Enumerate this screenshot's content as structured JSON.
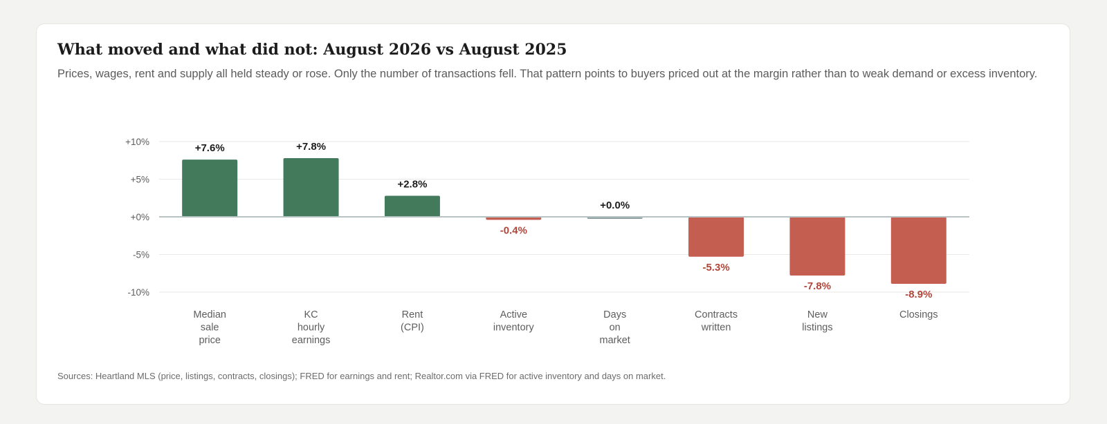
{
  "title": "What moved and what did not: August 2026 vs August 2025",
  "subtitle": "Prices, wages, rent and supply all held steady or rose. Only the number of transactions fell. That pattern points to buyers priced out at the margin rather than to weak demand or excess inventory.",
  "source": "Sources: Heartland MLS (price, listings, contracts, closings); FRED for earnings and rent; Realtor.com via FRED for active inventory and days on market.",
  "colors": {
    "positive": "#447a5c",
    "negative": "#c45e51",
    "neutral": "#8fa3a3",
    "negative_label": "#b2453a",
    "positive_label": "#1c1c1c",
    "zero_line": "#b7c2c2",
    "grid": "#e7e9e6"
  },
  "chart_data": {
    "type": "bar",
    "title": "What moved and what did not: August 2026 vs August 2025",
    "xlabel": "",
    "ylabel": "",
    "ylim": [
      -10,
      10
    ],
    "yticks": [
      10,
      5,
      0,
      -5,
      -10
    ],
    "ytick_labels": [
      "+10%",
      "+5%",
      "+0%",
      "-5%",
      "-10%"
    ],
    "grid": true,
    "categories": [
      [
        "Median",
        "sale",
        "price"
      ],
      [
        "KC",
        "hourly",
        "earnings"
      ],
      [
        "Rent",
        "(CPI)"
      ],
      [
        "Active",
        "inventory"
      ],
      [
        "Days",
        "on",
        "market"
      ],
      [
        "Contracts",
        "written"
      ],
      [
        "New",
        "listings"
      ],
      [
        "Closings"
      ]
    ],
    "values": [
      7.6,
      7.8,
      2.8,
      -0.4,
      0.0,
      -5.3,
      -7.8,
      -8.9
    ],
    "value_labels": [
      "+7.6%",
      "+7.8%",
      "+2.8%",
      "-0.4%",
      "+0.0%",
      "-5.3%",
      "-7.8%",
      "-8.9%"
    ]
  }
}
